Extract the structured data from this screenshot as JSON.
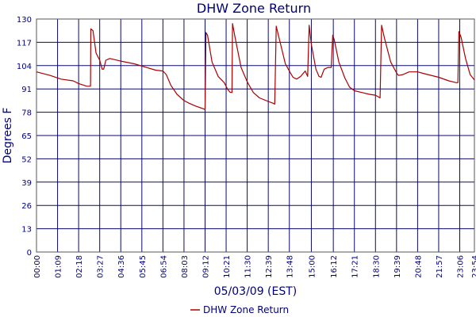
{
  "chart_data": {
    "type": "line",
    "title": "DHW Zone Return",
    "xlabel": "05/03/09 (EST)",
    "ylabel": "Degrees F",
    "ylim": [
      0,
      130
    ],
    "yticks": [
      "0",
      "13",
      "26",
      "39",
      "52",
      "65",
      "78",
      "91",
      "104",
      "117",
      "130"
    ],
    "xlim": [
      "00:00",
      "23:54"
    ],
    "xticks": [
      "00:00",
      "01:09",
      "02:18",
      "03:27",
      "04:36",
      "05:45",
      "06:54",
      "08:03",
      "09:12",
      "10:21",
      "11:30",
      "12:39",
      "13:48",
      "15:00",
      "16:12",
      "17:21",
      "18:30",
      "19:39",
      "20:48",
      "21:57",
      "23:06",
      "23:54"
    ],
    "grid": true,
    "legend": "bottom-center",
    "series": [
      {
        "name": "DHW Zone Return",
        "color": "#aa0000",
        "points": [
          [
            "00:00",
            100.5
          ],
          [
            "00:45",
            98.5
          ],
          [
            "01:20",
            96.5
          ],
          [
            "02:00",
            95.5
          ],
          [
            "02:18",
            94
          ],
          [
            "02:45",
            92.5
          ],
          [
            "02:57",
            92.5
          ],
          [
            "02:58",
            124.5
          ],
          [
            "03:05",
            123.5
          ],
          [
            "03:15",
            111
          ],
          [
            "03:27",
            107
          ],
          [
            "03:35",
            102
          ],
          [
            "03:40",
            102
          ],
          [
            "03:47",
            107
          ],
          [
            "04:00",
            108
          ],
          [
            "04:36",
            106.5
          ],
          [
            "05:20",
            105
          ],
          [
            "06:00",
            103
          ],
          [
            "06:30",
            101.5
          ],
          [
            "06:54",
            101
          ],
          [
            "07:05",
            99
          ],
          [
            "07:20",
            93
          ],
          [
            "07:40",
            88
          ],
          [
            "08:03",
            84.5
          ],
          [
            "08:20",
            83
          ],
          [
            "08:40",
            81.5
          ],
          [
            "09:05",
            80
          ],
          [
            "09:12",
            79.5
          ],
          [
            "09:15",
            122.5
          ],
          [
            "09:20",
            121
          ],
          [
            "09:35",
            106
          ],
          [
            "09:55",
            98
          ],
          [
            "10:15",
            94.5
          ],
          [
            "10:25",
            91
          ],
          [
            "10:35",
            89
          ],
          [
            "10:40",
            89
          ],
          [
            "10:42",
            127.5
          ],
          [
            "10:50",
            120
          ],
          [
            "11:10",
            103
          ],
          [
            "11:30",
            95
          ],
          [
            "11:50",
            89
          ],
          [
            "12:10",
            86
          ],
          [
            "12:39",
            84
          ],
          [
            "12:55",
            83
          ],
          [
            "13:00",
            82.5
          ],
          [
            "13:05",
            126
          ],
          [
            "13:15",
            119
          ],
          [
            "13:35",
            105
          ],
          [
            "13:48",
            101
          ],
          [
            "14:00",
            97.5
          ],
          [
            "14:12",
            96.5
          ],
          [
            "14:25",
            98
          ],
          [
            "14:40",
            101
          ],
          [
            "14:48",
            98
          ],
          [
            "14:53",
            126.5
          ],
          [
            "15:00",
            116
          ],
          [
            "15:15",
            102
          ],
          [
            "15:25",
            98
          ],
          [
            "15:32",
            97.5
          ],
          [
            "15:42",
            102
          ],
          [
            "15:55",
            103
          ],
          [
            "16:05",
            103
          ],
          [
            "16:10",
            121
          ],
          [
            "16:15",
            118.5
          ],
          [
            "16:30",
            106
          ],
          [
            "16:50",
            97
          ],
          [
            "17:05",
            92
          ],
          [
            "17:21",
            90
          ],
          [
            "17:45",
            89
          ],
          [
            "18:10",
            88
          ],
          [
            "18:30",
            87.5
          ],
          [
            "18:45",
            86
          ],
          [
            "18:50",
            126.5
          ],
          [
            "19:00",
            119
          ],
          [
            "19:20",
            106
          ],
          [
            "19:39",
            100
          ],
          [
            "19:45",
            98.5
          ],
          [
            "20:00",
            99
          ],
          [
            "20:20",
            100.5
          ],
          [
            "20:48",
            100.5
          ],
          [
            "21:10",
            99.5
          ],
          [
            "21:57",
            97.5
          ],
          [
            "22:30",
            95.5
          ],
          [
            "22:55",
            94.5
          ],
          [
            "23:00",
            94.5
          ],
          [
            "23:03",
            123
          ],
          [
            "23:10",
            120
          ],
          [
            "23:25",
            108
          ],
          [
            "23:40",
            99
          ],
          [
            "23:54",
            96
          ]
        ]
      }
    ]
  }
}
